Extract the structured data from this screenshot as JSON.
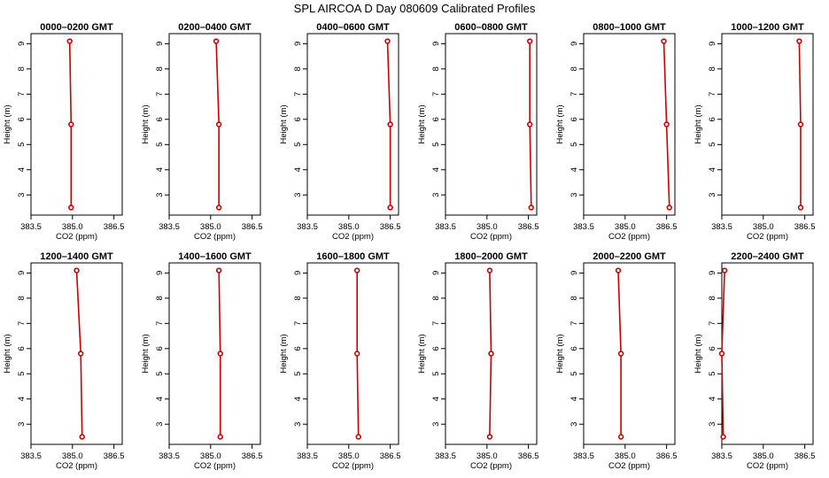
{
  "title": "SPL AIRCOA D  Day 080609  Calibrated Profiles",
  "chart_data": {
    "type": "line",
    "xlabel": "CO2 (ppm)",
    "ylabel": "Height (m)",
    "xlim": [
      383.5,
      386.8
    ],
    "ylim": [
      2.2,
      9.4
    ],
    "x_ticks": [
      "383.5",
      "385.0",
      "386.5"
    ],
    "x_tick_values": [
      383.5,
      385.0,
      386.5
    ],
    "y_ticks": [
      "3",
      "4",
      "5",
      "6",
      "7",
      "8",
      "9"
    ],
    "y_tick_values": [
      3,
      4,
      5,
      6,
      7,
      8,
      9
    ],
    "heights": [
      9.1,
      5.8,
      2.5
    ],
    "color": "#cc0000",
    "panels": [
      {
        "title": "0000–0200 GMT",
        "values": [
          384.9,
          384.95,
          384.95
        ]
      },
      {
        "title": "0200–0400 GMT",
        "values": [
          385.2,
          385.3,
          385.3
        ]
      },
      {
        "title": "0400–0600 GMT",
        "values": [
          386.4,
          386.5,
          386.5
        ]
      },
      {
        "title": "0600–0800 GMT",
        "values": [
          386.55,
          386.55,
          386.6
        ]
      },
      {
        "title": "0800–1000 GMT",
        "values": [
          386.4,
          386.5,
          386.6
        ]
      },
      {
        "title": "1000–1200 GMT",
        "values": [
          386.3,
          386.35,
          386.35
        ]
      },
      {
        "title": "1200–1400 GMT",
        "values": [
          385.15,
          385.3,
          385.35
        ]
      },
      {
        "title": "1400–1600 GMT",
        "values": [
          385.3,
          385.35,
          385.35
        ]
      },
      {
        "title": "1600–1800 GMT",
        "values": [
          385.3,
          385.3,
          385.35
        ]
      },
      {
        "title": "1800–2000 GMT",
        "values": [
          385.1,
          385.15,
          385.1
        ]
      },
      {
        "title": "2000–2200 GMT",
        "values": [
          384.75,
          384.85,
          384.85
        ]
      },
      {
        "title": "2200–2400 GMT",
        "values": [
          383.6,
          383.5,
          383.55
        ]
      }
    ]
  }
}
